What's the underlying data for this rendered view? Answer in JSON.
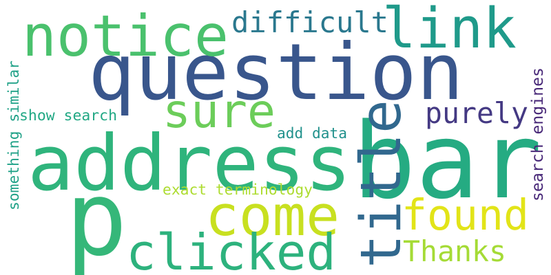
{
  "words": [
    {
      "text": "p",
      "color": "#35b779",
      "orientation": "horizontal"
    },
    {
      "text": "address",
      "color": "#2fb47c",
      "orientation": "horizontal"
    },
    {
      "text": "bar",
      "color": "#25ab82",
      "orientation": "horizontal"
    },
    {
      "text": "question",
      "color": "#39568c",
      "orientation": "horizontal"
    },
    {
      "text": "notice",
      "color": "#4ac16d",
      "orientation": "horizontal"
    },
    {
      "text": "link",
      "color": "#1f9a8a",
      "orientation": "horizontal"
    },
    {
      "text": "difficult",
      "color": "#2a788e",
      "orientation": "horizontal"
    },
    {
      "text": "sure",
      "color": "#6ccd5a",
      "orientation": "horizontal"
    },
    {
      "text": "title",
      "color": "#31688e",
      "orientation": "vertical"
    },
    {
      "text": "purely",
      "color": "#443983",
      "orientation": "horizontal"
    },
    {
      "text": "come",
      "color": "#c8e020",
      "orientation": "horizontal"
    },
    {
      "text": "found",
      "color": "#e2e418",
      "orientation": "horizontal"
    },
    {
      "text": "clicked",
      "color": "#2db27d",
      "orientation": "horizontal"
    },
    {
      "text": "Thanks",
      "color": "#a5db36",
      "orientation": "horizontal"
    },
    {
      "text": "show search",
      "color": "#22a884",
      "orientation": "horizontal"
    },
    {
      "text": "add data",
      "color": "#21918c",
      "orientation": "horizontal"
    },
    {
      "text": "exact terminology",
      "color": "#addc30",
      "orientation": "horizontal"
    },
    {
      "text": "something similar",
      "color": "#1fa187",
      "orientation": "vertical"
    },
    {
      "text": "search engines",
      "color": "#482878",
      "orientation": "vertical"
    }
  ]
}
